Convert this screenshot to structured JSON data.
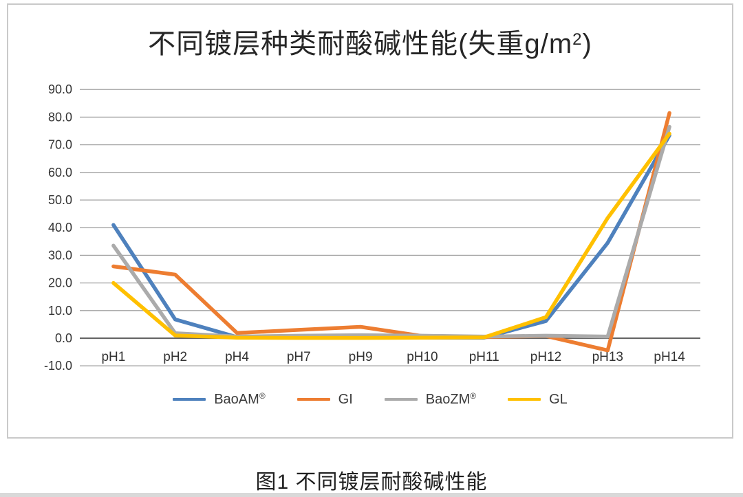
{
  "page": {
    "caption": "图1 不同镀层耐酸碱性能"
  },
  "chart": {
    "title_main": "不同镀层种类耐酸碱性能(失重g/m",
    "title_sup": "2",
    "title_end": ")"
  },
  "chart_data": {
    "type": "line",
    "title": "不同镀层种类耐酸碱性能(失重g/m²)",
    "categories": [
      "pH1",
      "pH2",
      "pH4",
      "pH7",
      "pH9",
      "pH10",
      "pH11",
      "pH12",
      "pH13",
      "pH14"
    ],
    "series": [
      {
        "name": "BaoAM®",
        "color": "#4E81BD",
        "values": [
          41.0,
          6.8,
          0.4,
          0.2,
          0.2,
          0.2,
          0.2,
          6.2,
          34.5,
          73.4
        ]
      },
      {
        "name": "GI",
        "color": "#ED7D31",
        "values": [
          26.0,
          23.0,
          1.9,
          3.0,
          4.1,
          0.8,
          0.4,
          0.8,
          -4.4,
          81.5
        ]
      },
      {
        "name": "BaoZM®",
        "color": "#ABABAB",
        "values": [
          33.5,
          1.8,
          0.6,
          0.9,
          1.1,
          0.9,
          0.6,
          0.9,
          0.6,
          76.5
        ]
      },
      {
        "name": "GL",
        "color": "#FFC000",
        "values": [
          20.0,
          1.0,
          0.2,
          0.1,
          0.1,
          0.2,
          0.3,
          7.6,
          43.5,
          74.0
        ]
      }
    ],
    "ylim": [
      -10,
      90
    ],
    "ytick_step": 10,
    "ytick_labels": [
      "90.0",
      "80.0",
      "70.0",
      "60.0",
      "50.0",
      "40.0",
      "30.0",
      "20.0",
      "10.0",
      "0.0",
      "-10.0"
    ],
    "xlabel": "",
    "ylabel": "",
    "grid": true,
    "legend_position": "bottom",
    "colors": {
      "gridline": "#A3A3A3",
      "zero_axis": "#666666",
      "axis_text": "#333333"
    }
  }
}
